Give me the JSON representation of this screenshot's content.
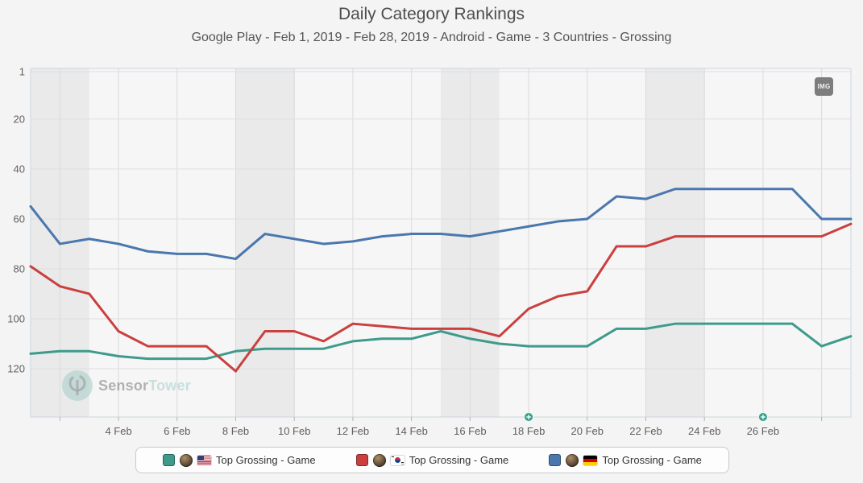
{
  "header": {
    "title": "Daily Category Rankings",
    "subtitle": "Google Play - Feb 1, 2019 - Feb 28, 2019 - Android - Game - 3 Countries - Grossing"
  },
  "export_button_label": "IMG",
  "watermark": {
    "sensor": "Sensor",
    "tower": "Tower"
  },
  "chart_data": {
    "type": "line",
    "title": "Daily Category Rankings",
    "subtitle": "Google Play - Feb 1, 2019 - Feb 28, 2019 - Android - Game - 3 Countries - Grossing",
    "y_axis": {
      "label": "rank",
      "inverted": true,
      "ticks": [
        1,
        20,
        40,
        60,
        80,
        100,
        120
      ]
    },
    "x_axis": {
      "start_date": "Feb 1, 2019",
      "days_shown": 29,
      "tick_days": [
        4,
        6,
        8,
        10,
        12,
        14,
        16,
        18,
        20,
        22,
        24,
        26
      ],
      "tick_labels": [
        "4 Feb",
        "6 Feb",
        "8 Feb",
        "10 Feb",
        "12 Feb",
        "14 Feb",
        "16 Feb",
        "18 Feb",
        "20 Feb",
        "22 Feb",
        "24 Feb",
        "26 Feb"
      ]
    },
    "weekend_bands_days": [
      [
        1,
        3
      ],
      [
        8,
        10
      ],
      [
        15,
        17
      ],
      [
        22,
        24
      ]
    ],
    "annotation_marker_days": [
      18,
      26
    ],
    "annotation_marker_color": "#35a08c",
    "grid": true,
    "legend_position": "bottom",
    "series": [
      {
        "name": "Top Grossing - Game",
        "country": "United States",
        "color": "#3e9b8c",
        "daily_ranks": [
          114,
          113,
          113,
          115,
          116,
          116,
          116,
          113,
          112,
          112,
          112,
          109,
          108,
          108,
          105,
          108,
          110,
          111,
          111,
          111,
          104,
          104,
          102,
          102,
          102,
          102,
          102,
          111,
          107
        ]
      },
      {
        "name": "Top Grossing - Game",
        "country": "South Korea",
        "color": "#c9403f",
        "daily_ranks": [
          79,
          87,
          90,
          105,
          111,
          111,
          111,
          121,
          105,
          105,
          109,
          102,
          103,
          104,
          104,
          104,
          107,
          96,
          91,
          89,
          71,
          71,
          67,
          67,
          67,
          67,
          67,
          67,
          62
        ]
      },
      {
        "name": "Top Grossing - Game",
        "country": "Germany",
        "color": "#4a77ae",
        "daily_ranks": [
          55,
          70,
          68,
          70,
          73,
          74,
          74,
          76,
          66,
          68,
          70,
          69,
          67,
          66,
          66,
          67,
          65,
          63,
          61,
          60,
          51,
          52,
          48,
          48,
          48,
          48,
          48,
          60,
          60
        ]
      }
    ]
  },
  "legend": {
    "items": [
      {
        "label": "Top Grossing - Game",
        "flag": "US",
        "color": "#3e9b8c"
      },
      {
        "label": "Top Grossing - Game",
        "flag": "KR",
        "color": "#c9403f"
      },
      {
        "label": "Top Grossing - Game",
        "flag": "DE",
        "color": "#4a77ae"
      }
    ]
  }
}
